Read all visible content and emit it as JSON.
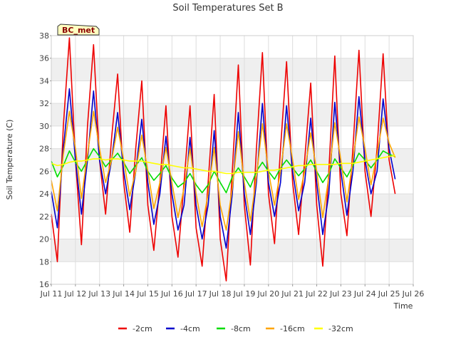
{
  "chart_data": {
    "type": "line",
    "title": "Soil Temperatures Set B",
    "xlabel": "Time",
    "ylabel": "Soil Temperature (C)",
    "station_label": "BC_met",
    "xlim": [
      11,
      26
    ],
    "ylim": [
      16,
      38
    ],
    "x_ticks": [
      "Jul 11",
      "Jul 12",
      "Jul 13",
      "Jul 14",
      "Jul 15",
      "Jul 16",
      "Jul 17",
      "Jul 18",
      "Jul 19",
      "Jul 20",
      "Jul 21",
      "Jul 22",
      "Jul 23",
      "Jul 24",
      "Jul 25",
      "Jul 26"
    ],
    "y_ticks": [
      16,
      18,
      20,
      22,
      24,
      26,
      28,
      30,
      32,
      34,
      36,
      38
    ],
    "grid": true,
    "legend_position": "bottom",
    "x": [
      11.0,
      11.25,
      11.5,
      11.75,
      12.0,
      12.25,
      12.5,
      12.75,
      13.0,
      13.25,
      13.5,
      13.75,
      14.0,
      14.25,
      14.5,
      14.75,
      15.0,
      15.25,
      15.5,
      15.75,
      16.0,
      16.25,
      16.5,
      16.75,
      17.0,
      17.25,
      17.5,
      17.75,
      18.0,
      18.25,
      18.5,
      18.75,
      19.0,
      19.25,
      19.5,
      19.75,
      20.0,
      20.25,
      20.5,
      20.75,
      21.0,
      21.25,
      21.5,
      21.75,
      22.0,
      22.25,
      22.5,
      22.75,
      23.0,
      23.25,
      23.5,
      23.75,
      24.0,
      24.25,
      24.5,
      24.75,
      25.0,
      25.25
    ],
    "series": [
      {
        "name": "-2cm",
        "color": "#ee0000",
        "values": [
          22.2,
          18.0,
          30.0,
          37.8,
          27.0,
          19.5,
          30.0,
          37.2,
          27.0,
          22.2,
          29.0,
          34.6,
          25.0,
          20.6,
          28.0,
          34.0,
          23.0,
          19.0,
          25.0,
          31.8,
          22.0,
          18.4,
          25.0,
          31.8,
          21.0,
          17.6,
          25.0,
          32.8,
          20.0,
          16.3,
          26.0,
          35.4,
          23.0,
          17.7,
          28.0,
          36.5,
          24.0,
          19.6,
          28.0,
          35.7,
          25.0,
          20.4,
          27.0,
          33.8,
          23.0,
          17.6,
          26.0,
          36.2,
          24.0,
          20.3,
          28.0,
          36.7,
          26.0,
          22.0,
          28.0,
          36.4,
          27.0,
          24.0
        ]
      },
      {
        "name": "-4cm",
        "color": "#0000cc",
        "values": [
          24.2,
          21.0,
          28.0,
          33.3,
          27.0,
          22.2,
          27.0,
          33.1,
          27.0,
          24.0,
          27.0,
          31.2,
          26.0,
          22.6,
          26.0,
          30.6,
          25.0,
          21.3,
          24.0,
          29.1,
          24.0,
          20.8,
          23.0,
          29.0,
          23.0,
          20.0,
          23.0,
          29.6,
          22.0,
          19.2,
          24.0,
          31.2,
          24.0,
          20.4,
          25.0,
          32.0,
          25.0,
          22.0,
          25.0,
          31.8,
          26.0,
          22.5,
          25.0,
          30.7,
          25.0,
          20.4,
          24.0,
          32.1,
          26.0,
          22.1,
          26.0,
          32.6,
          27.0,
          24.0,
          26.0,
          32.4,
          28.0,
          25.3
        ]
      },
      {
        "name": "-8cm",
        "color": "#00dd00",
        "values": [
          26.9,
          25.5,
          26.5,
          27.8,
          26.8,
          26.0,
          27.0,
          28.0,
          27.3,
          26.4,
          27.0,
          27.6,
          26.8,
          25.8,
          26.5,
          27.2,
          26.0,
          25.2,
          25.8,
          26.5,
          25.4,
          24.6,
          25.0,
          25.8,
          24.8,
          24.1,
          24.8,
          26.0,
          25.0,
          24.1,
          25.5,
          26.3,
          25.5,
          24.6,
          26.0,
          26.8,
          26.0,
          25.3,
          26.3,
          27.0,
          26.3,
          25.6,
          26.2,
          27.0,
          26.0,
          25.0,
          25.8,
          27.1,
          26.3,
          25.5,
          26.5,
          27.6,
          27.0,
          26.3,
          27.0,
          27.8,
          27.5,
          27.3
        ]
      },
      {
        "name": "-16cm",
        "color": "#ffa500",
        "values": [
          25.2,
          22.5,
          27.5,
          31.3,
          28.0,
          23.6,
          27.5,
          31.3,
          28.0,
          25.0,
          27.0,
          29.9,
          27.0,
          23.8,
          26.0,
          29.2,
          26.0,
          22.7,
          25.0,
          28.1,
          25.0,
          21.9,
          24.5,
          28.0,
          24.0,
          21.1,
          24.0,
          28.1,
          23.0,
          20.8,
          24.5,
          29.5,
          25.0,
          21.6,
          25.5,
          30.2,
          26.0,
          23.0,
          26.0,
          30.2,
          27.0,
          23.5,
          26.0,
          29.4,
          26.0,
          21.9,
          25.5,
          30.3,
          27.0,
          23.3,
          27.0,
          30.8,
          28.0,
          24.8,
          27.5,
          30.7,
          28.5,
          27.2
        ]
      },
      {
        "name": "-32cm",
        "color": "#ffff00",
        "values": [
          26.7,
          26.5,
          26.6,
          26.8,
          26.9,
          26.9,
          27.0,
          27.1,
          27.1,
          27.0,
          27.1,
          27.1,
          27.0,
          26.9,
          26.9,
          26.9,
          26.8,
          26.7,
          26.6,
          26.6,
          26.5,
          26.4,
          26.3,
          26.3,
          26.2,
          26.1,
          26.0,
          26.0,
          25.9,
          25.8,
          25.8,
          25.9,
          25.9,
          25.9,
          25.9,
          26.0,
          26.1,
          26.1,
          26.2,
          26.3,
          26.4,
          26.5,
          26.5,
          26.6,
          26.6,
          26.6,
          26.6,
          26.6,
          26.7,
          26.7,
          26.7,
          26.8,
          26.9,
          27.0,
          27.1,
          27.2,
          27.3,
          27.4
        ]
      }
    ]
  }
}
